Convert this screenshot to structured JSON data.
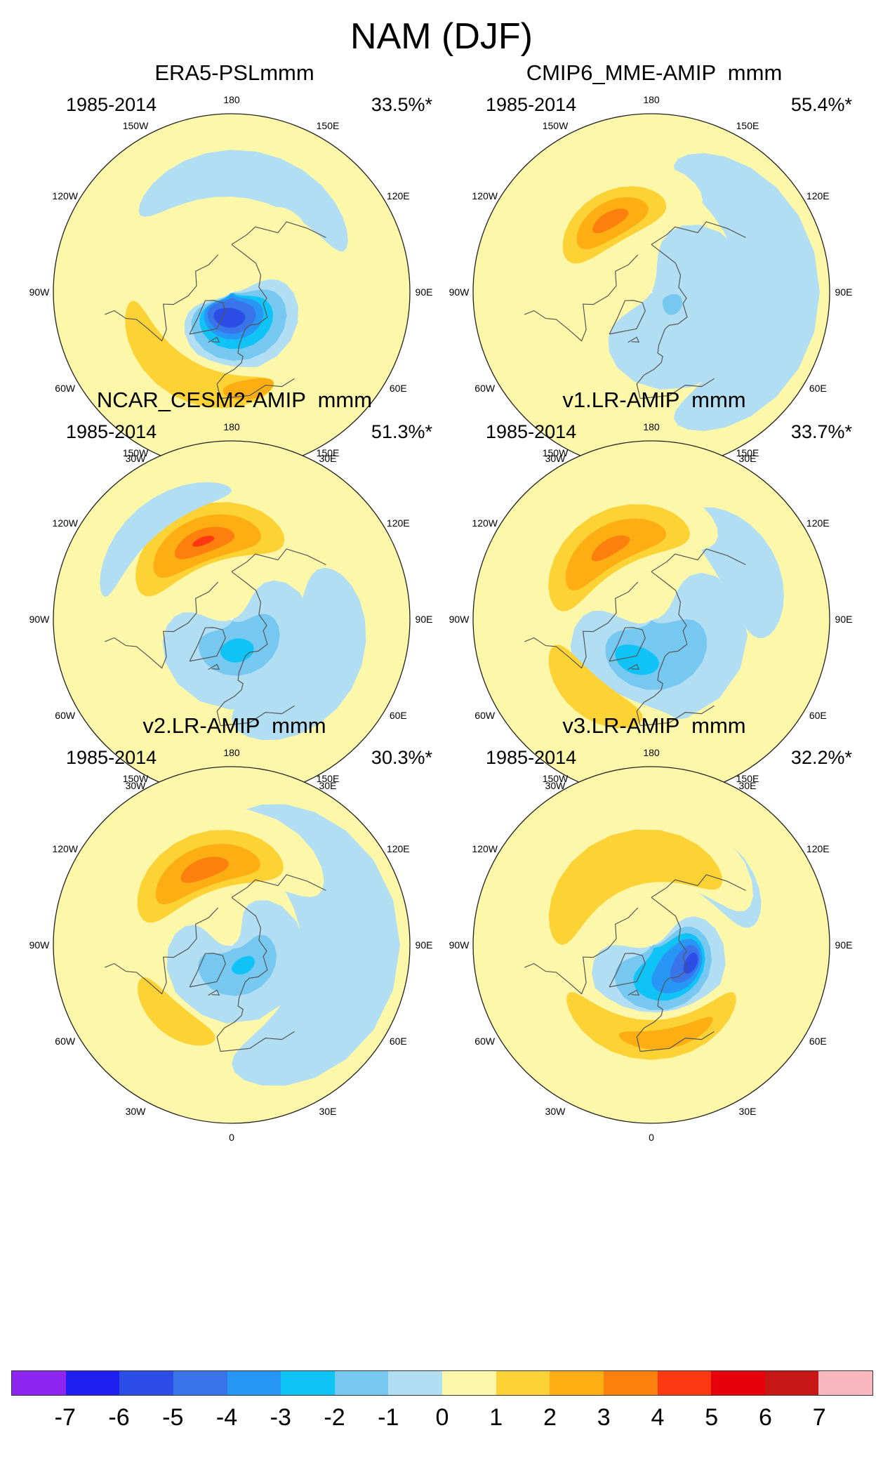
{
  "figure": {
    "title": "NAM (DJF)",
    "lon_labels": [
      "180",
      "150E",
      "120E",
      "90E",
      "60E",
      "30E",
      "0",
      "30W",
      "60W",
      "90W",
      "120W",
      "150W"
    ]
  },
  "panels": [
    {
      "title": "ERA5-PSLmmm",
      "period": "1985-2014",
      "explained_variance": "33.5%*",
      "features": [
        {
          "level": -1,
          "lat": 74,
          "lon": 20,
          "rlat": 24,
          "rlon": 90
        },
        {
          "level": -2,
          "lat": 75,
          "lon": 15,
          "rlat": 20,
          "rlon": 80
        },
        {
          "level": -3,
          "lat": 77,
          "lon": 10,
          "rlat": 16,
          "rlon": 70
        },
        {
          "level": -4,
          "lat": 78,
          "lon": 5,
          "rlat": 12,
          "rlon": 65
        },
        {
          "level": -5,
          "lat": 78,
          "lon": 0,
          "rlat": 9,
          "rlon": 55
        },
        {
          "level": -6,
          "lat": 77,
          "lon": -5,
          "rlat": 5,
          "rlon": 35
        },
        {
          "level": 1,
          "lat": 40,
          "lon": -30,
          "rlat": 14,
          "rlon": 70
        },
        {
          "level": 2,
          "lat": 40,
          "lon": -30,
          "rlat": 10,
          "rlon": 55
        },
        {
          "level": 3,
          "lat": 40,
          "lon": 10,
          "rlat": 5,
          "rlon": 15
        },
        {
          "level": -1,
          "lat": 30,
          "lon": 170,
          "rlat": 12,
          "rlon": 60
        },
        {
          "level": 1,
          "lat": 45,
          "lon": 140,
          "rlat": 6,
          "rlon": 15
        }
      ]
    },
    {
      "title": "CMIP6_MME-AMIP  mmm",
      "period": "1985-2014",
      "explained_variance": "55.4%*",
      "features": [
        {
          "level": -1,
          "lat": 70,
          "lon": 60,
          "rlat": 34,
          "rlon": 110
        },
        {
          "level": -1,
          "lat": 25,
          "lon": 90,
          "rlat": 20,
          "rlon": 80
        },
        {
          "level": 1,
          "lat": 40,
          "lon": -150,
          "rlat": 18,
          "rlon": 60
        },
        {
          "level": 2,
          "lat": 47,
          "lon": -150,
          "rlat": 13,
          "rlon": 40
        },
        {
          "level": 3,
          "lat": 48,
          "lon": -150,
          "rlat": 9,
          "rlon": 28
        },
        {
          "level": 4,
          "lat": 48,
          "lon": -150,
          "rlat": 4,
          "rlon": 14
        },
        {
          "level": -2,
          "lat": 78,
          "lon": 60,
          "rlat": 5,
          "rlon": 25
        }
      ]
    },
    {
      "title": "NCAR_CESM2-AMIP  mmm",
      "period": "1985-2014",
      "explained_variance": "51.3%*",
      "features": [
        {
          "level": -1,
          "lat": 70,
          "lon": 20,
          "rlat": 26,
          "rlon": 120
        },
        {
          "level": -1,
          "lat": 40,
          "lon": 60,
          "rlat": 20,
          "rlon": 60
        },
        {
          "level": -2,
          "lat": 75,
          "lon": 20,
          "rlat": 14,
          "rlon": 80
        },
        {
          "level": -3,
          "lat": 74,
          "lon": 10,
          "rlat": 6,
          "rlon": 30
        },
        {
          "level": 1,
          "lat": 40,
          "lon": -160,
          "rlat": 20,
          "rlon": 70
        },
        {
          "level": 2,
          "lat": 45,
          "lon": -160,
          "rlat": 15,
          "rlon": 55
        },
        {
          "level": 3,
          "lat": 47,
          "lon": -160,
          "rlat": 11,
          "rlon": 40
        },
        {
          "level": 4,
          "lat": 48,
          "lon": -160,
          "rlat": 6,
          "rlon": 22
        },
        {
          "level": 5,
          "lat": 48,
          "lon": -160,
          "rlat": 2,
          "rlon": 8
        },
        {
          "level": -1,
          "lat": 25,
          "lon": -140,
          "rlat": 8,
          "rlon": 40
        }
      ]
    },
    {
      "title": "v1.LR-AMIP  mmm",
      "period": "1985-2014",
      "explained_variance": "33.7%*",
      "features": [
        {
          "level": -1,
          "lat": 65,
          "lon": 20,
          "rlat": 28,
          "rlon": 120
        },
        {
          "level": -1,
          "lat": 35,
          "lon": 120,
          "rlat": 15,
          "rlon": 40
        },
        {
          "level": -2,
          "lat": 72,
          "lon": 10,
          "rlat": 18,
          "rlon": 80
        },
        {
          "level": -3,
          "lat": 68,
          "lon": -20,
          "rlat": 7,
          "rlon": 30
        },
        {
          "level": 1,
          "lat": 35,
          "lon": -30,
          "rlat": 14,
          "rlon": 45
        },
        {
          "level": 2,
          "lat": 40,
          "lon": -40,
          "rlat": 10,
          "rlon": 35
        },
        {
          "level": 1,
          "lat": 40,
          "lon": -150,
          "rlat": 20,
          "rlon": 70
        },
        {
          "level": 2,
          "lat": 45,
          "lon": -150,
          "rlat": 15,
          "rlon": 55
        },
        {
          "level": 3,
          "lat": 47,
          "lon": -150,
          "rlat": 10,
          "rlon": 40
        },
        {
          "level": 4,
          "lat": 48,
          "lon": -150,
          "rlat": 4,
          "rlon": 15
        }
      ]
    },
    {
      "title": "v2.LR-AMIP  mmm",
      "period": "1985-2014",
      "explained_variance": "30.3%*",
      "features": [
        {
          "level": -1,
          "lat": 72,
          "lon": 20,
          "rlat": 22,
          "rlon": 140
        },
        {
          "level": -1,
          "lat": 30,
          "lon": 90,
          "rlat": 25,
          "rlon": 90
        },
        {
          "level": -2,
          "lat": 76,
          "lon": 20,
          "rlat": 12,
          "rlon": 90
        },
        {
          "level": -3,
          "lat": 78,
          "lon": 30,
          "rlat": 4,
          "rlon": 30
        },
        {
          "level": 1,
          "lat": 40,
          "lon": -40,
          "rlat": 13,
          "rlon": 40
        },
        {
          "level": 2,
          "lat": 42,
          "lon": -40,
          "rlat": 8,
          "rlon": 30
        },
        {
          "level": 1,
          "lat": 40,
          "lon": -160,
          "rlat": 20,
          "rlon": 80
        },
        {
          "level": 2,
          "lat": 46,
          "lon": -160,
          "rlat": 15,
          "rlon": 55
        },
        {
          "level": 3,
          "lat": 48,
          "lon": -160,
          "rlat": 10,
          "rlon": 40
        },
        {
          "level": 4,
          "lat": 49,
          "lon": -160,
          "rlat": 5,
          "rlon": 18
        }
      ]
    },
    {
      "title": "v3.LR-AMIP  mmm",
      "period": "1985-2014",
      "explained_variance": "32.2%*",
      "features": [
        {
          "level": -1,
          "lat": 72,
          "lon": 20,
          "rlat": 24,
          "rlon": 110
        },
        {
          "level": -1,
          "lat": 40,
          "lon": 150,
          "rlat": 15,
          "rlon": 50
        },
        {
          "level": -2,
          "lat": 74,
          "lon": 30,
          "rlat": 18,
          "rlon": 90
        },
        {
          "level": -3,
          "lat": 74,
          "lon": 40,
          "rlat": 14,
          "rlon": 70
        },
        {
          "level": -4,
          "lat": 72,
          "lon": 50,
          "rlat": 10,
          "rlon": 50
        },
        {
          "level": -5,
          "lat": 70,
          "lon": 60,
          "rlat": 6,
          "rlon": 30
        },
        {
          "level": -6,
          "lat": 68,
          "lon": 65,
          "rlat": 3,
          "rlon": 15
        },
        {
          "level": 1,
          "lat": 40,
          "lon": -10,
          "rlat": 16,
          "rlon": 90
        },
        {
          "level": 2,
          "lat": 42,
          "lon": 0,
          "rlat": 10,
          "rlon": 60
        },
        {
          "level": 3,
          "lat": 42,
          "lon": 10,
          "rlat": 5,
          "rlon": 30
        },
        {
          "level": 1,
          "lat": 40,
          "lon": -160,
          "rlat": 20,
          "rlon": 90
        },
        {
          "level": 2,
          "lat": 45,
          "lon": -160,
          "rlat": 14,
          "rlon": 70
        }
      ]
    }
  ],
  "colorbar": {
    "colors": [
      "#8c26f0",
      "#1f1ff2",
      "#2d4ee6",
      "#3a74ea",
      "#2896f5",
      "#10c3f7",
      "#77c8f1",
      "#b2def3",
      "#fdf8a9",
      "#fdd235",
      "#fcae12",
      "#fd7f0e",
      "#fd3912",
      "#e8000d",
      "#c71616",
      "#f8b8bd"
    ],
    "labels": [
      "-7",
      "-6",
      "-5",
      "-4",
      "-3",
      "-2",
      "-1",
      "0",
      "1",
      "2",
      "3",
      "4",
      "5",
      "6",
      "7"
    ]
  },
  "colors": {
    "background_positive": "#fdf8a9",
    "coastline": "#555555"
  }
}
